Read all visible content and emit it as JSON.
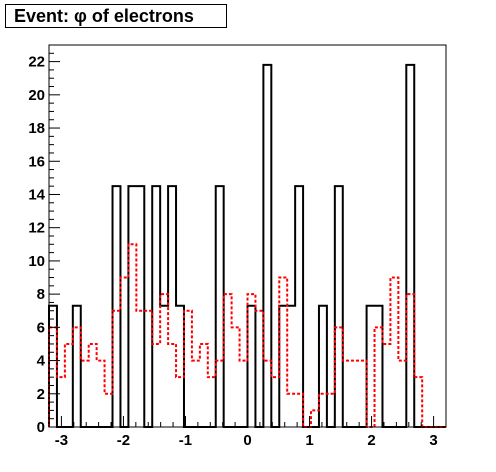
{
  "chart_data": {
    "type": "histogram-step",
    "title": "Event: φ of electrons",
    "xlabel": "",
    "ylabel": "",
    "xlim": [
      -3.2,
      3.2
    ],
    "ylim": [
      0,
      23
    ],
    "grid": false,
    "x_ticks": [
      -3,
      -2,
      -1,
      0,
      1,
      2,
      3
    ],
    "y_ticks": [
      0,
      2,
      4,
      6,
      8,
      10,
      12,
      14,
      16,
      18,
      20,
      22
    ],
    "x_tick_labels": [
      "-3",
      "-2",
      "-1",
      "0",
      "1",
      "2",
      "3"
    ],
    "y_tick_labels": [
      "0",
      "2",
      "4",
      "6",
      "8",
      "10",
      "12",
      "14",
      "16",
      "18",
      "20",
      "22"
    ],
    "bin_edges": [
      -3.2,
      -3.072,
      -2.944,
      -2.816,
      -2.688,
      -2.56,
      -2.432,
      -2.304,
      -2.176,
      -2.048,
      -1.92,
      -1.792,
      -1.664,
      -1.536,
      -1.408,
      -1.28,
      -1.152,
      -1.024,
      -0.896,
      -0.768,
      -0.64,
      -0.512,
      -0.384,
      -0.256,
      -0.128,
      0,
      0.128,
      0.256,
      0.384,
      0.512,
      0.64,
      0.768,
      0.896,
      1.024,
      1.152,
      1.28,
      1.408,
      1.536,
      1.664,
      1.792,
      1.92,
      2.048,
      2.176,
      2.304,
      2.432,
      2.56,
      2.688,
      2.816,
      2.944,
      3.072,
      3.2
    ],
    "series": [
      {
        "color": "#000000",
        "style": "solid",
        "values": [
          7.3,
          0,
          0,
          7.3,
          0,
          0,
          0,
          0,
          14.5,
          0,
          14.5,
          14.5,
          0,
          14.5,
          7.3,
          14.5,
          7.3,
          0,
          0,
          0,
          0,
          14.5,
          0,
          0,
          0,
          7.3,
          0,
          21.8,
          0,
          7.3,
          7.3,
          14.5,
          0,
          0,
          7.3,
          0,
          14.5,
          0,
          0,
          0,
          7.3,
          7.3,
          0,
          0,
          0,
          21.8,
          0,
          0,
          0,
          0
        ]
      },
      {
        "color": "#ff0000",
        "style": "dotted",
        "values": [
          6,
          3,
          5,
          6,
          4,
          5,
          4,
          2,
          7,
          9,
          11,
          7,
          7,
          5,
          8,
          5,
          3,
          7,
          4,
          5,
          3,
          4,
          8,
          6,
          4,
          8,
          7,
          4,
          3,
          9,
          2,
          2,
          0,
          1,
          2,
          2,
          6,
          4,
          4,
          4,
          0,
          6,
          5,
          9,
          4,
          8,
          3,
          0,
          0,
          0
        ]
      }
    ]
  }
}
